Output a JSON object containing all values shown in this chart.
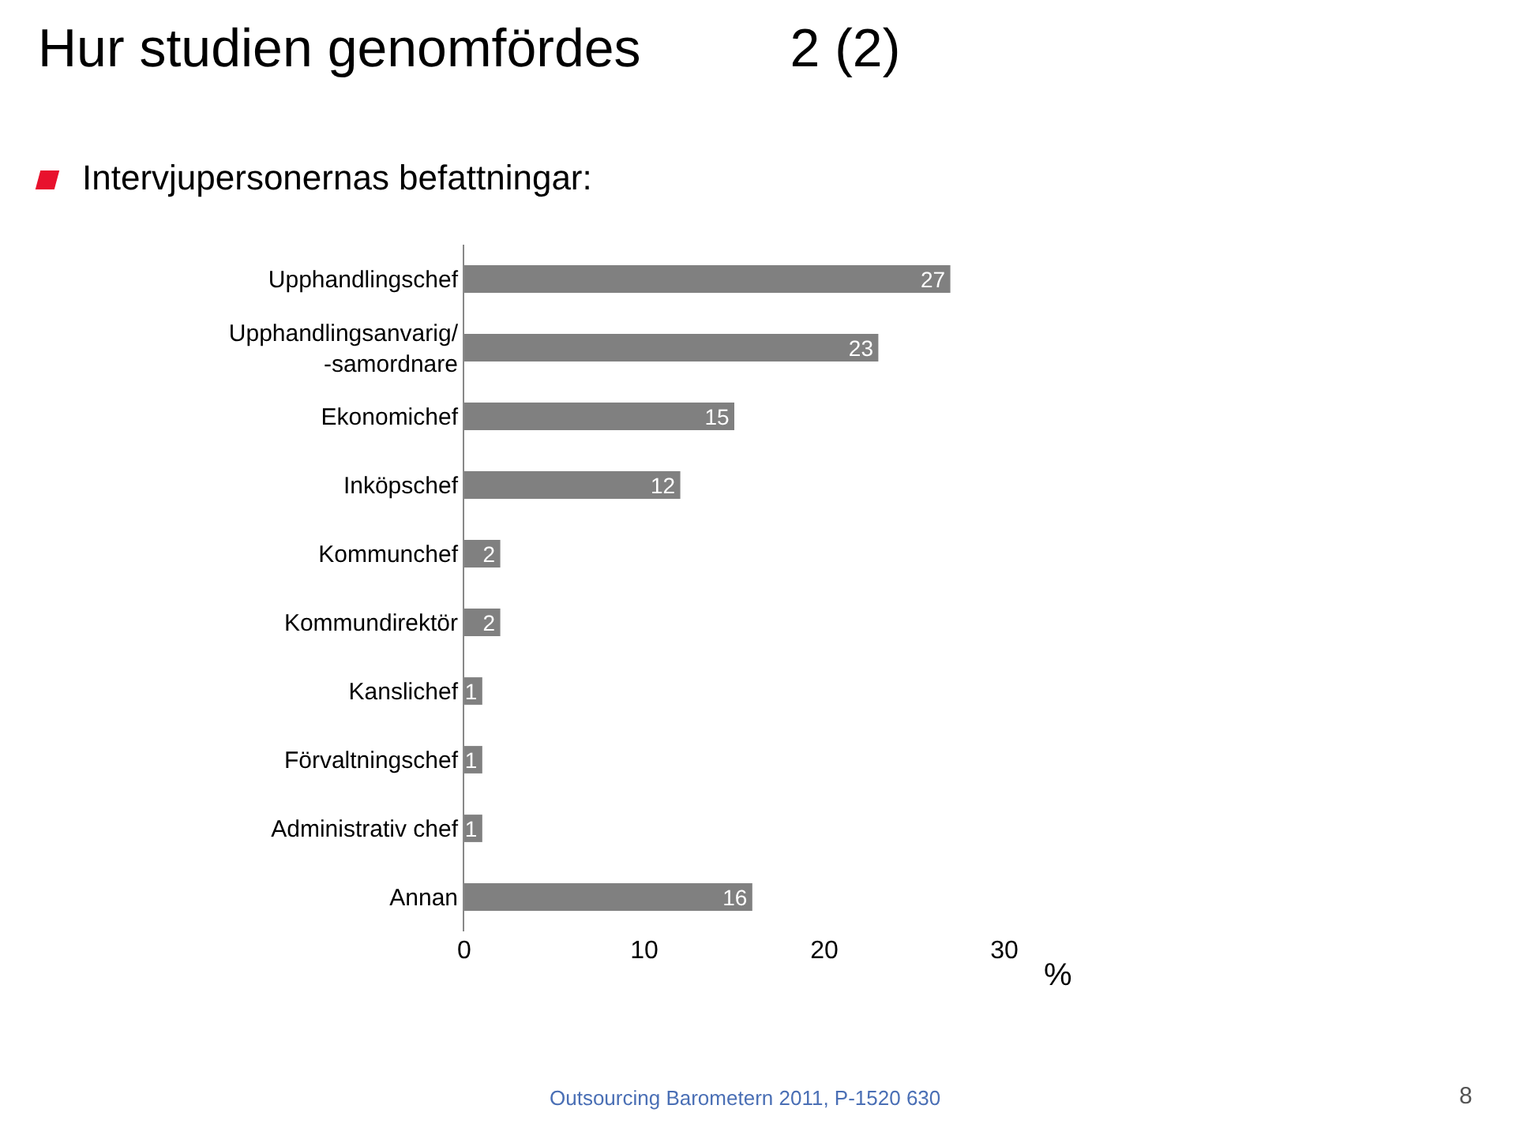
{
  "chart_data": {
    "type": "bar",
    "orientation": "horizontal",
    "title": "Hur studien genomfördes          2 (2)",
    "subtitle": "Intervjupersonernas befattningar:",
    "xlabel": "%",
    "categories": [
      "Upphandlingschef",
      "Upphandlingsanvarig/\n-samordnare",
      "Ekonomichef",
      "Inköpschef",
      "Kommunchef",
      "Kommundirektör",
      "Kanslichef",
      "Förvaltningschef",
      "Administrativ chef",
      "Annan"
    ],
    "values": [
      27,
      23,
      15,
      12,
      2,
      2,
      1,
      1,
      1,
      16
    ],
    "color": "#808080",
    "xlim": [
      0,
      30
    ],
    "xticks": [
      0,
      10,
      20,
      30
    ],
    "grid": false,
    "data_labels": true,
    "annotations": [
      "Outsourcing Barometern 2011, P-1520 630",
      "8"
    ]
  }
}
